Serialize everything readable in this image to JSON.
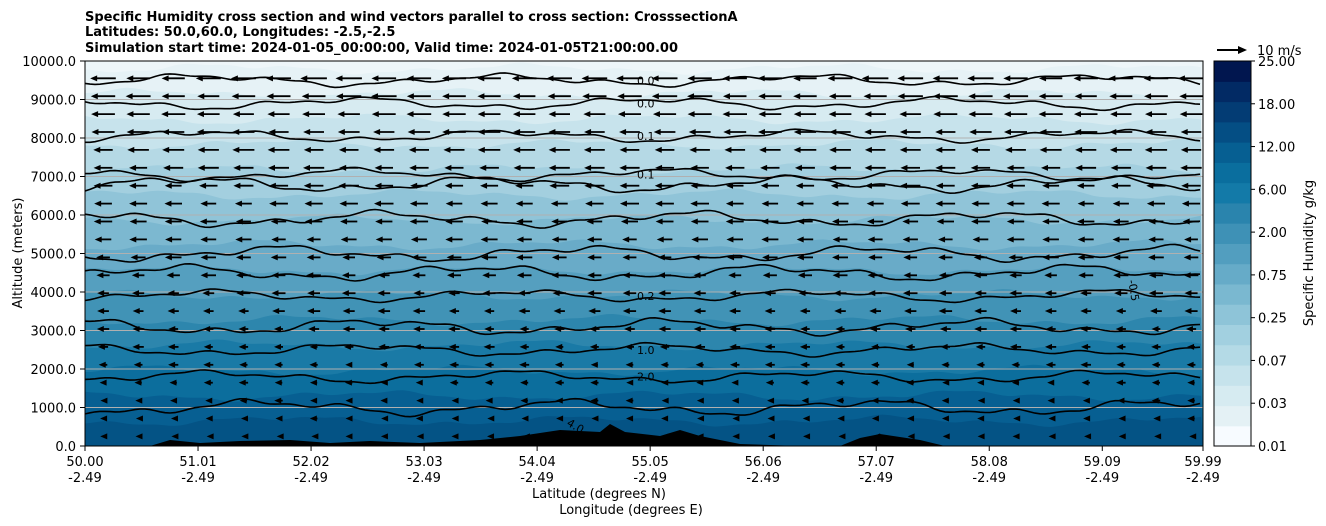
{
  "chart_data": {
    "type": "heatmap",
    "title_lines": [
      "Specific Humidity cross section and wind vectors parallel to cross section: CrosssectionA",
      "Latitudes: 50.0,60.0, Longitudes: -2.5,-2.5",
      "Simulation start time: 2024-01-05_00:00:00, Valid time: 2024-01-05T21:00:00.00"
    ],
    "xlabel_lines": [
      "Latitude (degrees N)",
      "Longitude (degrees E)"
    ],
    "ylabel": "Altitude (meters)",
    "x_ticks": [
      {
        "lat": "50.00",
        "lon": "-2.49"
      },
      {
        "lat": "51.01",
        "lon": "-2.49"
      },
      {
        "lat": "52.02",
        "lon": "-2.49"
      },
      {
        "lat": "53.03",
        "lon": "-2.49"
      },
      {
        "lat": "54.04",
        "lon": "-2.49"
      },
      {
        "lat": "55.05",
        "lon": "-2.49"
      },
      {
        "lat": "56.06",
        "lon": "-2.49"
      },
      {
        "lat": "57.07",
        "lon": "-2.49"
      },
      {
        "lat": "58.08",
        "lon": "-2.49"
      },
      {
        "lat": "59.09",
        "lon": "-2.49"
      },
      {
        "lat": "59.99",
        "lon": "-2.49"
      }
    ],
    "xlim": [
      50.0,
      59.99
    ],
    "ylim": [
      0,
      10000
    ],
    "y_ticks": [
      "0.0",
      "1000.0",
      "2000.0",
      "3000.0",
      "4000.0",
      "5000.0",
      "6000.0",
      "7000.0",
      "8000.0",
      "9000.0",
      "10000.0"
    ],
    "y_grid": true,
    "colorbar": {
      "label": "Specific Humidity g/kg",
      "ticks": [
        "0.01",
        "0.03",
        "0.07",
        "0.25",
        "0.75",
        "2.00",
        "6.00",
        "12.00",
        "18.00",
        "25.00"
      ],
      "colors": [
        "#f7fbff",
        "#e4f1f5",
        "#d6ebf1",
        "#c6e3ec",
        "#b4dae6",
        "#a2d0e0",
        "#8ec4d8",
        "#7ab8d0",
        "#66abc8",
        "#529ebf",
        "#3e91b6",
        "#2a84ad",
        "#137aa8",
        "#0a6e9e",
        "#065f92",
        "#044e84",
        "#033c74",
        "#022a64",
        "#01164f"
      ]
    },
    "contour_levels": [
      {
        "label": "0.0",
        "altitude": 9500
      },
      {
        "label": "0.0",
        "altitude": 8900
      },
      {
        "label": "0.1",
        "altitude": 8050
      },
      {
        "label": "0.1",
        "altitude": 7050
      },
      {
        "label": "0.2",
        "altitude": 3900
      },
      {
        "label": "1.0",
        "altitude": 2500
      },
      {
        "label": "2.0",
        "altitude": 1800
      }
    ],
    "inline_labels": [
      "-0.5",
      "4.0"
    ],
    "vector_key": {
      "label": "10 m/s",
      "speed": 10
    }
  }
}
